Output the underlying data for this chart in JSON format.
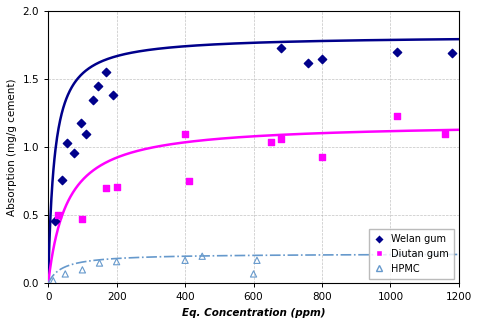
{
  "title": "",
  "xlabel": "Eq. Concentration (ppm)",
  "ylabel": "Absorption (mg/g cement)",
  "xlim": [
    0,
    1200
  ],
  "ylim": [
    0,
    2
  ],
  "yticks": [
    0,
    0.5,
    1,
    1.5,
    2
  ],
  "xticks": [
    0,
    200,
    400,
    600,
    800,
    1000,
    1200
  ],
  "welan_scatter_x": [
    20,
    40,
    55,
    75,
    95,
    110,
    130,
    145,
    170,
    190,
    680,
    760,
    800,
    1020,
    1180
  ],
  "welan_scatter_y": [
    0.46,
    0.76,
    1.03,
    0.96,
    1.18,
    1.1,
    1.35,
    1.45,
    1.55,
    1.38,
    1.73,
    1.62,
    1.65,
    1.7,
    1.69
  ],
  "diutan_scatter_x": [
    30,
    100,
    170,
    200,
    400,
    410,
    650,
    680,
    800,
    1020,
    1160
  ],
  "diutan_scatter_y": [
    0.5,
    0.47,
    0.7,
    0.71,
    1.1,
    0.75,
    1.04,
    1.06,
    0.93,
    1.23,
    1.1
  ],
  "hpmc_scatter_x": [
    15,
    50,
    100,
    150,
    200,
    400,
    450,
    600,
    610
  ],
  "hpmc_scatter_y": [
    0.02,
    0.07,
    0.1,
    0.15,
    0.16,
    0.17,
    0.2,
    0.07,
    0.17
  ],
  "welan_color": "#00008B",
  "diutan_color": "#FF00FF",
  "hpmc_color": "#6699CC",
  "langmuir_welan_Qm": 1.82,
  "langmuir_welan_K": 0.055,
  "langmuir_diutan_Qm": 1.18,
  "langmuir_diutan_K": 0.018,
  "langmuir_hpmc_Qm": 0.22,
  "langmuir_hpmc_K": 0.025,
  "background_color": "#FFFFFF",
  "grid_color": "#AAAAAA",
  "fig_background": "#F0F0F0"
}
